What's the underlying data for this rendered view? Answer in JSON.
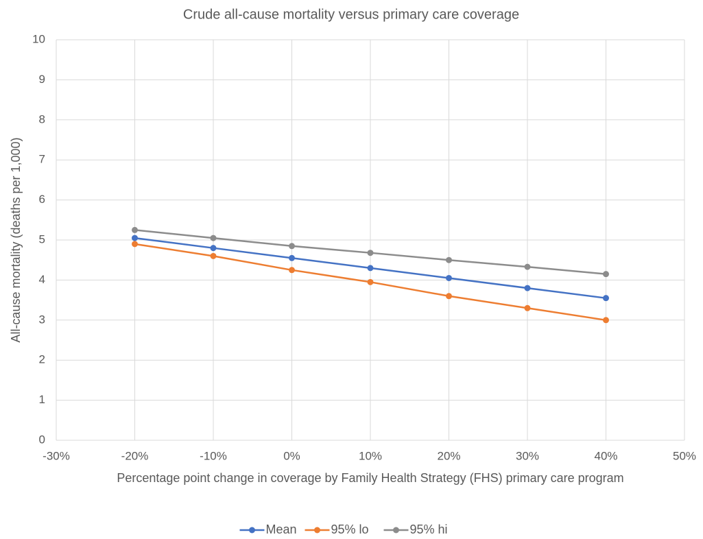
{
  "chart_data": {
    "type": "line",
    "title": "Crude all-cause mortality versus primary care coverage",
    "x_label": "Percentage point change in coverage by  Family Health Strategy (FHS) primary care program",
    "y_label": "All-cause mortality (deaths per 1,000)",
    "x": [
      -20,
      -10,
      0,
      10,
      20,
      30,
      40
    ],
    "series": [
      {
        "name": "Mean",
        "color": "#4472c4",
        "values": [
          5.05,
          4.8,
          4.55,
          4.3,
          4.05,
          3.8,
          3.55
        ]
      },
      {
        "name": "95% lo",
        "color": "#ed7d31",
        "values": [
          4.9,
          4.6,
          4.25,
          3.95,
          3.6,
          3.3,
          3.0
        ]
      },
      {
        "name": "95% hi",
        "color": "#8c8c8c",
        "values": [
          5.25,
          5.05,
          4.85,
          4.68,
          4.5,
          4.33,
          4.15
        ]
      }
    ],
    "xlim": [
      -30,
      50
    ],
    "xticks": [
      {
        "value": -30,
        "label": "-30%"
      },
      {
        "value": -20,
        "label": "-20%"
      },
      {
        "value": -10,
        "label": "-10%"
      },
      {
        "value": 0,
        "label": "0%"
      },
      {
        "value": 10,
        "label": "10%"
      },
      {
        "value": 20,
        "label": "20%"
      },
      {
        "value": 30,
        "label": "30%"
      },
      {
        "value": 40,
        "label": "40%"
      },
      {
        "value": 50,
        "label": "50%"
      }
    ],
    "ylim": [
      0,
      10
    ],
    "yticks": [
      0,
      1,
      2,
      3,
      4,
      5,
      6,
      7,
      8,
      9,
      10
    ],
    "grid": true,
    "legend": "bottom"
  }
}
